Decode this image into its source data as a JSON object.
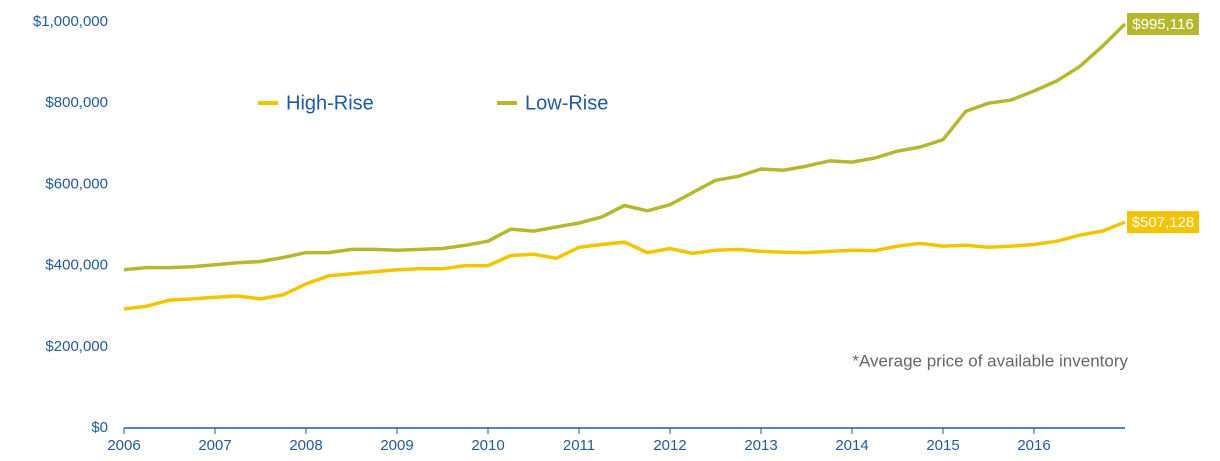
{
  "chart_data": {
    "type": "line",
    "annotation": "*Average price of available inventory",
    "x": [
      2006,
      2006.25,
      2006.5,
      2006.75,
      2007,
      2007.25,
      2007.5,
      2007.75,
      2008,
      2008.25,
      2008.5,
      2008.75,
      2009,
      2009.25,
      2009.5,
      2009.75,
      2010,
      2010.25,
      2010.5,
      2010.75,
      2011,
      2011.25,
      2011.5,
      2011.75,
      2012,
      2012.25,
      2012.5,
      2012.75,
      2013,
      2013.25,
      2013.5,
      2013.75,
      2014,
      2014.25,
      2014.5,
      2014.75,
      2015,
      2015.25,
      2015.5,
      2015.75,
      2016,
      2016.25,
      2016.5,
      2016.75,
      2017
    ],
    "series": [
      {
        "name": "High-Rise",
        "color": "#f5c400",
        "values": [
          293000,
          300000,
          315000,
          318000,
          322000,
          325000,
          318000,
          328000,
          355000,
          375000,
          380000,
          385000,
          390000,
          392000,
          392000,
          400000,
          400000,
          425000,
          428000,
          418000,
          445000,
          452000,
          458000,
          432000,
          442000,
          430000,
          438000,
          440000,
          435000,
          433000,
          432000,
          435000,
          438000,
          437000,
          448000,
          455000,
          448000,
          450000,
          445000,
          448000,
          452000,
          460000,
          475000,
          485000,
          507128
        ],
        "value_labels": [
          null,
          null,
          null,
          null,
          null,
          null,
          null,
          null,
          null,
          null,
          null,
          null,
          null,
          null,
          null,
          null,
          null,
          null,
          null,
          null,
          null,
          null,
          null,
          null,
          null,
          null,
          null,
          null,
          null,
          null,
          null,
          null,
          null,
          null,
          null,
          null,
          null,
          null,
          null,
          null,
          null,
          null,
          null,
          null,
          "$507,128"
        ]
      },
      {
        "name": "Low-Rise",
        "color": "#b5b82f",
        "values": [
          390000,
          395000,
          395000,
          397000,
          402000,
          407000,
          410000,
          420000,
          432000,
          432000,
          440000,
          440000,
          438000,
          440000,
          442000,
          450000,
          460000,
          490000,
          485000,
          495000,
          505000,
          520000,
          548000,
          535000,
          550000,
          580000,
          610000,
          620000,
          638000,
          635000,
          645000,
          658000,
          655000,
          665000,
          682000,
          692000,
          710000,
          780000,
          800000,
          808000,
          830000,
          855000,
          890000,
          940000,
          995116
        ],
        "value_labels": [
          null,
          null,
          null,
          null,
          null,
          null,
          null,
          null,
          null,
          null,
          null,
          null,
          null,
          null,
          null,
          null,
          null,
          null,
          null,
          null,
          null,
          null,
          null,
          null,
          null,
          null,
          null,
          null,
          null,
          null,
          null,
          null,
          null,
          null,
          null,
          null,
          null,
          null,
          null,
          null,
          null,
          null,
          null,
          null,
          "$995,116"
        ]
      }
    ],
    "xlim": [
      2006,
      2017
    ],
    "xticks": [
      2006,
      2007,
      2008,
      2009,
      2010,
      2011,
      2012,
      2013,
      2014,
      2015,
      2016
    ],
    "ylim": [
      0,
      1000000
    ],
    "yticks": [
      {
        "value": 0,
        "label": "$0"
      },
      {
        "value": 200000,
        "label": "$200,000"
      },
      {
        "value": 400000,
        "label": "$400,000"
      },
      {
        "value": 600000,
        "label": "$600,000"
      },
      {
        "value": 800000,
        "label": "$800,000"
      },
      {
        "value": 1000000,
        "label": "$1,000,000"
      }
    ],
    "grid": false,
    "legend": "top"
  }
}
